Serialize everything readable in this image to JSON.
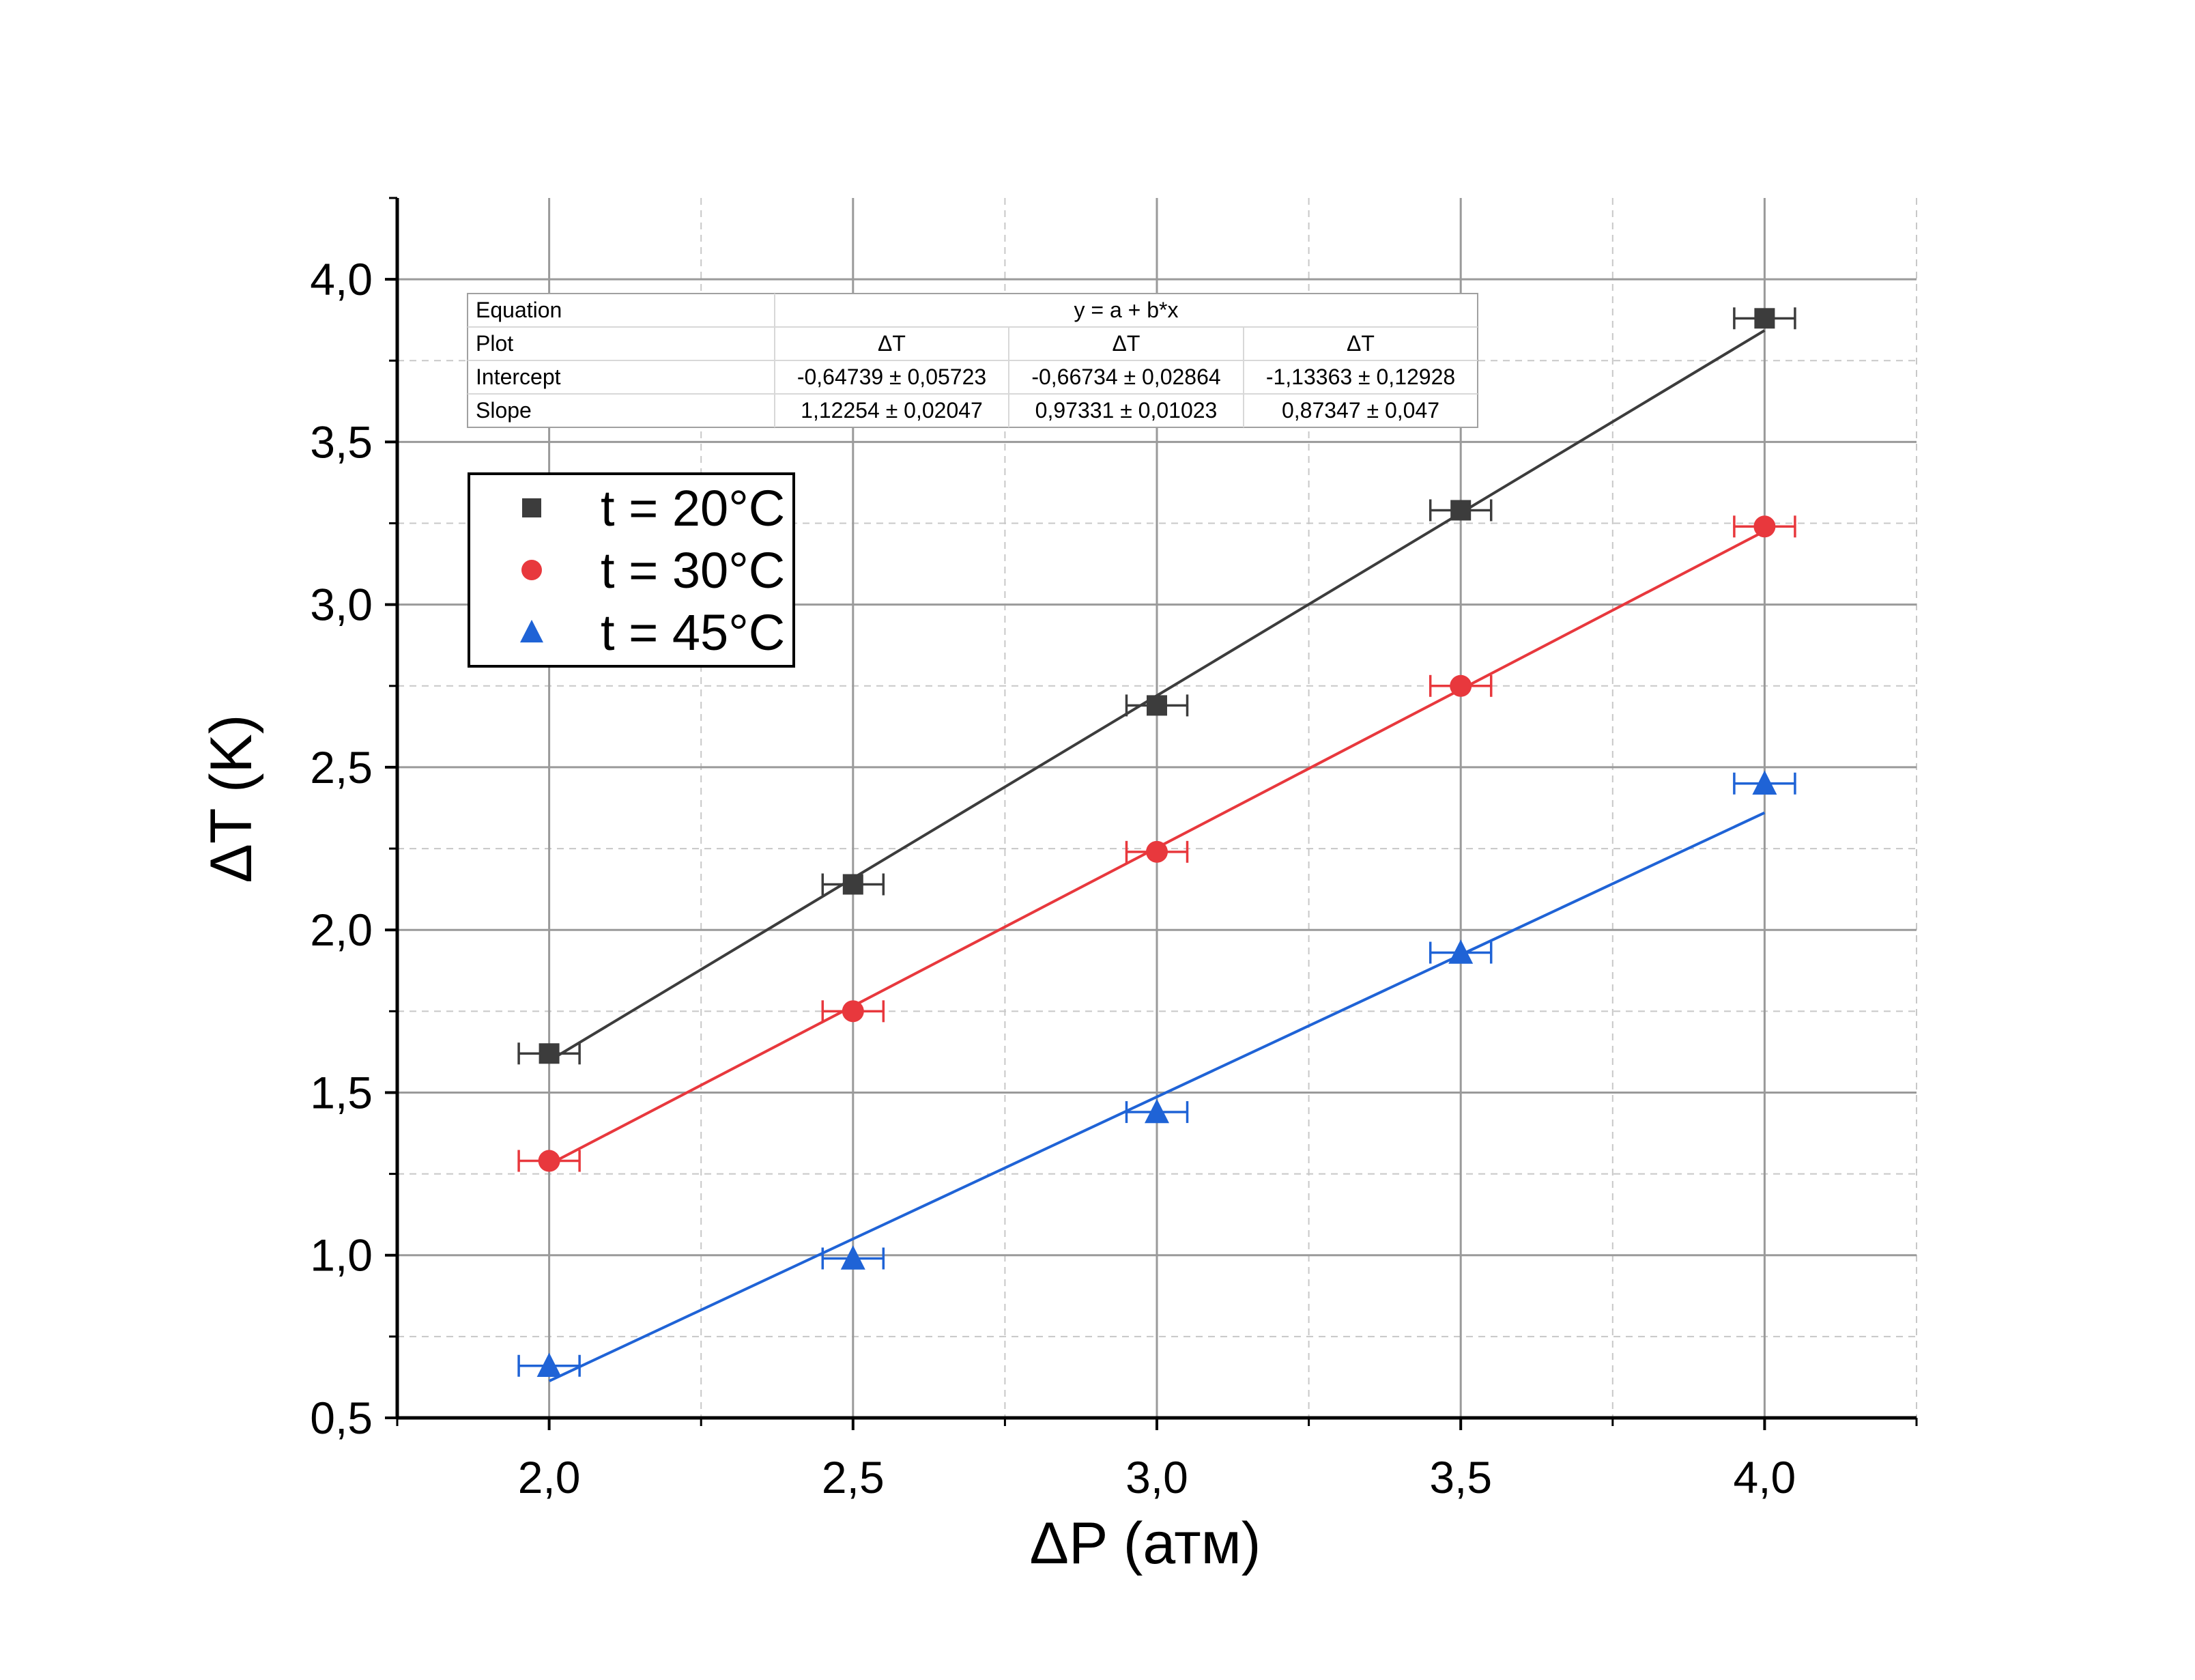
{
  "chart_data": {
    "type": "scatter",
    "title": "",
    "xlabel": "ΔP (атм)",
    "ylabel": "ΔT (K)",
    "xlim": [
      1.75,
      4.25
    ],
    "ylim": [
      0.5,
      4.25
    ],
    "x_ticks": [
      "2,0",
      "2,5",
      "3,0",
      "3,5",
      "4,0"
    ],
    "y_ticks": [
      "0,5",
      "1,0",
      "1,5",
      "2,0",
      "2,5",
      "3,0",
      "3,5",
      "4,0"
    ],
    "grid": true,
    "legend_position": "top-left",
    "x_error": 0.05,
    "series": [
      {
        "name": "t = 20°C",
        "color": "#3c3c3c",
        "marker": "square",
        "x": [
          2.0,
          2.5,
          3.0,
          3.5,
          4.0
        ],
        "y": [
          1.62,
          2.14,
          2.69,
          3.29,
          3.88
        ],
        "fit": {
          "intercept": -0.64739,
          "slope": 1.12254
        }
      },
      {
        "name": "t = 30°C",
        "color": "#e8383d",
        "marker": "circle",
        "x": [
          2.0,
          2.5,
          3.0,
          3.5,
          4.0
        ],
        "y": [
          1.29,
          1.75,
          2.24,
          2.75,
          3.24
        ],
        "fit": {
          "intercept": -0.66734,
          "slope": 0.97331
        }
      },
      {
        "name": "t = 45°C",
        "color": "#1f63d6",
        "marker": "triangle",
        "x": [
          2.0,
          2.5,
          3.0,
          3.5,
          4.0
        ],
        "y": [
          0.66,
          0.99,
          1.44,
          1.93,
          2.45
        ],
        "fit": {
          "intercept": -1.13363,
          "slope": 0.87347
        }
      }
    ],
    "fit_table": {
      "rows": [
        [
          "Equation",
          "y = a + b*x"
        ],
        [
          "Plot",
          "ΔT",
          "ΔT",
          "ΔT"
        ],
        [
          "Intercept",
          "-0,64739 ± 0,05723",
          "-0,66734 ± 0,02864",
          "-1,13363 ± 0,12928"
        ],
        [
          "Slope",
          "1,12254 ± 0,02047",
          "0,97331 ± 0,01023",
          "0,87347 ± 0,047"
        ]
      ]
    }
  }
}
